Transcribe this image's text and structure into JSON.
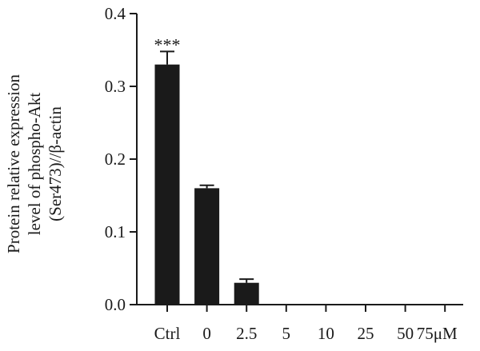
{
  "chart_data": {
    "type": "bar",
    "categories": [
      "Ctrl",
      "0",
      "2.5",
      "5",
      "10",
      "25",
      "50",
      "75"
    ],
    "unit": "μM",
    "values": [
      0.33,
      0.16,
      0.03,
      0,
      0,
      0,
      0,
      0
    ],
    "errors": [
      0.018,
      0.004,
      0.005,
      0,
      0,
      0,
      0,
      0
    ],
    "ylabel_lines": [
      "Protein relative expression",
      "level of phospho-Akt",
      "(Ser473)//β-actin"
    ],
    "ylim": [
      0,
      0.4
    ],
    "yticks": [
      0.0,
      0.1,
      0.2,
      0.3,
      0.4
    ],
    "ytick_labels": [
      "0.0",
      "0.1",
      "0.2",
      "0.3",
      "0.4"
    ],
    "annotations": [
      {
        "category": "Ctrl",
        "text": "***"
      }
    ],
    "bar_color": "#1a1a1a"
  }
}
